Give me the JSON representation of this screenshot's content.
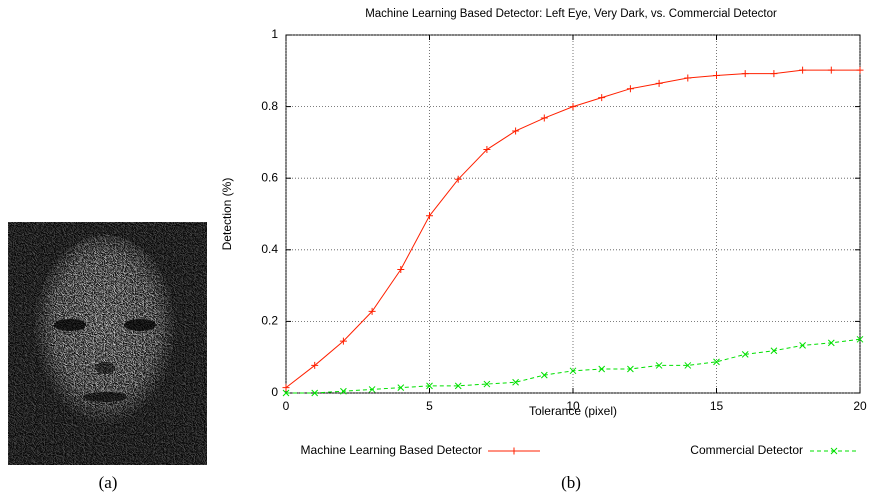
{
  "chart_data": {
    "type": "line",
    "title": "Machine Learning Based Detector: Left Eye, Very Dark, vs. Commercial Detector",
    "x_label": "Tolerance (pixel)",
    "y_label": "Detection (%)",
    "x": [
      0,
      1,
      2,
      3,
      4,
      5,
      6,
      7,
      8,
      9,
      10,
      11,
      12,
      13,
      14,
      15,
      16,
      17,
      18,
      19,
      20
    ],
    "series": [
      {
        "name": "Machine Learning Based Detector",
        "color": "#ff2000",
        "marker": "+",
        "dashed": false,
        "values": [
          0.015,
          0.077,
          0.145,
          0.228,
          0.345,
          0.495,
          0.597,
          0.68,
          0.732,
          0.768,
          0.8,
          0.825,
          0.85,
          0.865,
          0.88,
          0.887,
          0.892,
          0.892,
          0.902,
          0.902,
          0.902
        ]
      },
      {
        "name": "Commercial Detector",
        "color": "#00e000",
        "marker": "x",
        "dashed": true,
        "values": [
          0,
          0,
          0.005,
          0.01,
          0.015,
          0.02,
          0.02,
          0.025,
          0.03,
          0.05,
          0.062,
          0.067,
          0.067,
          0.077,
          0.077,
          0.087,
          0.108,
          0.118,
          0.133,
          0.14,
          0.15
        ]
      }
    ],
    "xlim": [
      0,
      20
    ],
    "xticks": [
      0,
      5,
      10,
      15,
      20
    ],
    "ylim": [
      0,
      1
    ],
    "yticks": [
      0,
      0.2,
      0.4,
      0.6,
      0.8,
      1
    ],
    "grid": true
  },
  "captions": [
    "(a)",
    "(b)"
  ]
}
